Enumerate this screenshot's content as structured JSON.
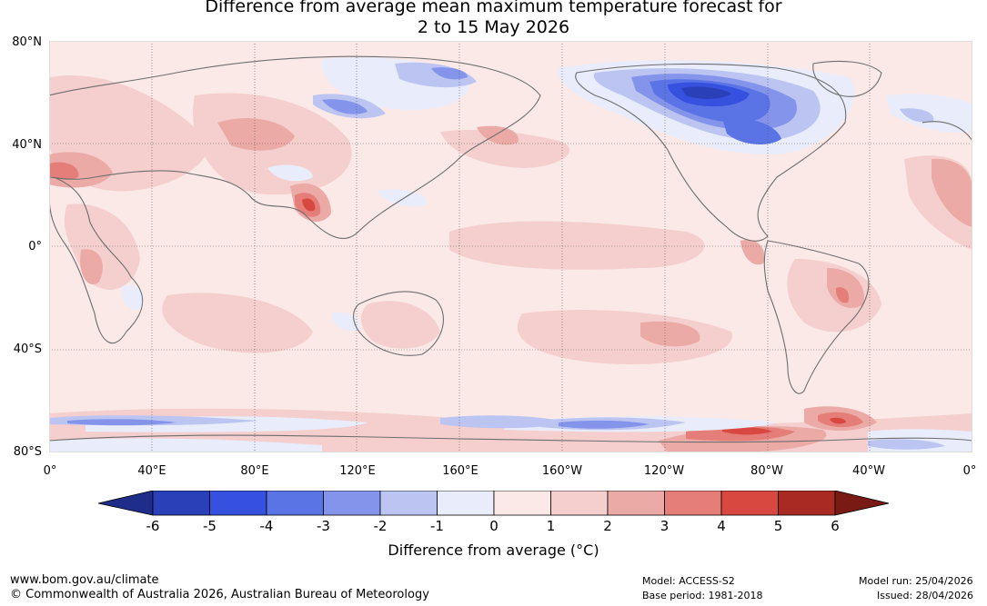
{
  "title": {
    "line1": "Difference from average mean maximum temperature forecast for",
    "line2": "2 to 15 May 2026"
  },
  "map": {
    "latitude_labels": [
      "80°N",
      "40°N",
      "0°",
      "40°S",
      "80°S"
    ],
    "longitude_labels": [
      "0°",
      "40°E",
      "80°E",
      "120°E",
      "160°E",
      "160°W",
      "120°W",
      "80°W",
      "40°W",
      "0°"
    ]
  },
  "colorbar": {
    "title": "Difference from average (°C)",
    "ticks": [
      "-6",
      "-5",
      "-4",
      "-3",
      "-2",
      "-1",
      "0",
      "1",
      "2",
      "3",
      "4",
      "5",
      "6"
    ],
    "colors": [
      "#1f2d8a",
      "#2a40b8",
      "#3650e0",
      "#5a74e6",
      "#8494ea",
      "#bcc5f2",
      "#e8ecfb",
      "#fbe9e8",
      "#f4cfcd",
      "#ecaaa6",
      "#e57e78",
      "#d94840",
      "#a82a22",
      "#7a1a15"
    ]
  },
  "footer": {
    "website": "www.bom.gov.au/climate",
    "copyright": "© Commonwealth of Australia 2026, Australian Bureau of Meteorology",
    "model": "Model: ACCESS-S2",
    "base_period": "Base period: 1981-2018",
    "model_run": "Model run: 25/04/2026",
    "issued": "Issued: 28/04/2026"
  }
}
